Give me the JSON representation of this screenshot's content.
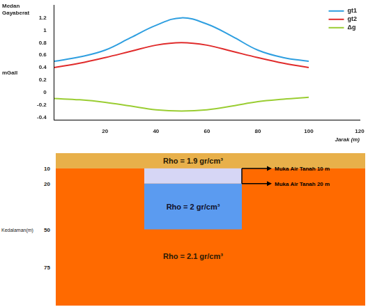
{
  "chart_data": {
    "type": "line",
    "y_label": "Medan Gayaberat",
    "y_unit": "mGall",
    "x_label": "Jarak (m)",
    "x": [
      0,
      10,
      20,
      30,
      40,
      50,
      60,
      70,
      80,
      90,
      100
    ],
    "series": [
      {
        "name": "gt1",
        "color": "#2f9fe0",
        "values": [
          0.5,
          0.57,
          0.68,
          0.88,
          1.08,
          1.2,
          1.1,
          0.9,
          0.68,
          0.56,
          0.5
        ]
      },
      {
        "name": "gt2",
        "color": "#e02b2b",
        "values": [
          0.4,
          0.47,
          0.56,
          0.66,
          0.76,
          0.8,
          0.76,
          0.66,
          0.56,
          0.47,
          0.4
        ]
      },
      {
        "name": "Δg",
        "color": "#9acd32",
        "values": [
          -0.1,
          -0.12,
          -0.16,
          -0.22,
          -0.28,
          -0.3,
          -0.28,
          -0.22,
          -0.15,
          -0.11,
          -0.08
        ]
      }
    ],
    "xlim": [
      0,
      120
    ],
    "xticks": [
      20,
      40,
      60,
      80,
      100,
      120
    ],
    "ylim": [
      -0.45,
      1.4
    ],
    "yticks": [
      -0.4,
      -0.2,
      0,
      0.2,
      0.4,
      0.6,
      0.8,
      1,
      1.2
    ],
    "grid": false,
    "legend": "upper right"
  },
  "diagram": {
    "depth_axis": {
      "label": "Kedalaman(m)",
      "ticks": [
        10,
        20,
        50,
        75
      ],
      "lim": [
        0,
        100
      ]
    },
    "layers": [
      {
        "label": "Rho = 1.9 gr/cm³",
        "top": 0,
        "bottom": 10,
        "color": "#e8b04a"
      },
      {
        "label": "Rho = 2.1 gr/cm³",
        "top": 10,
        "bottom": 100,
        "color": "#ff6a00"
      }
    ],
    "body": {
      "label": "Rho = 2 gr/cm³",
      "top": 10,
      "water_table": 20,
      "bottom": 50,
      "dry_color": "#d6d6f5",
      "wet_color": "#5b9bf0"
    },
    "water_tables": [
      {
        "label": "Muka Air Tanah 10 m",
        "depth": 10
      },
      {
        "label": "Muka Air Tanah 20 m",
        "depth": 20
      }
    ]
  }
}
